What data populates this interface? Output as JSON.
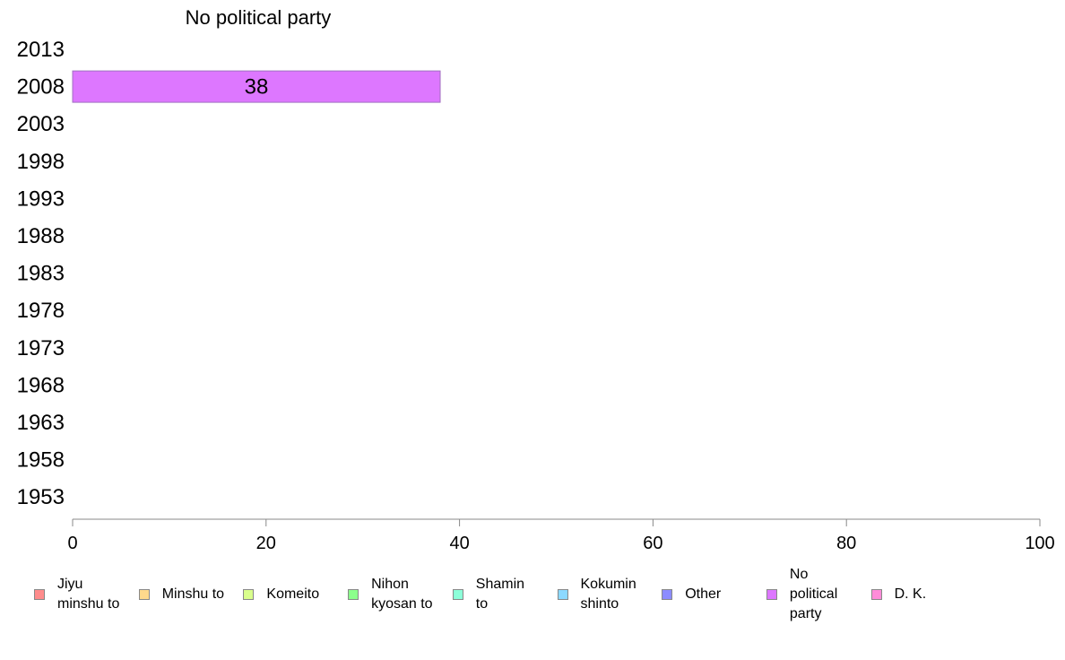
{
  "chart_data": {
    "type": "bar",
    "orientation": "horizontal",
    "title": "No political party",
    "categories": [
      "2013",
      "2008",
      "2003",
      "1998",
      "1993",
      "1988",
      "1983",
      "1978",
      "1973",
      "1968",
      "1963",
      "1958",
      "1953"
    ],
    "series": [
      {
        "name": "No political party",
        "values": [
          null,
          38,
          null,
          null,
          null,
          null,
          null,
          null,
          null,
          null,
          null,
          null,
          null
        ],
        "color": "#dd77ff"
      }
    ],
    "data_labels": {
      "2008": "38"
    },
    "xlim": [
      0,
      100
    ],
    "xticks": [
      "0",
      "20",
      "40",
      "60",
      "80",
      "100"
    ],
    "grid": false,
    "legend_position": "bottom",
    "legend": [
      {
        "label": "Jiyu minshu to",
        "color": "#ff8c8c"
      },
      {
        "label": "Minshu to",
        "color": "#ffd98c"
      },
      {
        "label": "Komeito",
        "color": "#d9ff8c"
      },
      {
        "label": "Nihon kyosan to",
        "color": "#8cff8c"
      },
      {
        "label": "Shamin to",
        "color": "#8cffd9"
      },
      {
        "label": "Kokumin shinto",
        "color": "#8cd9ff"
      },
      {
        "label": "Other",
        "color": "#8c8cff"
      },
      {
        "label": "No political party",
        "color": "#dd77ff"
      },
      {
        "label": "D. K.",
        "color": "#ff8cd9"
      }
    ]
  }
}
